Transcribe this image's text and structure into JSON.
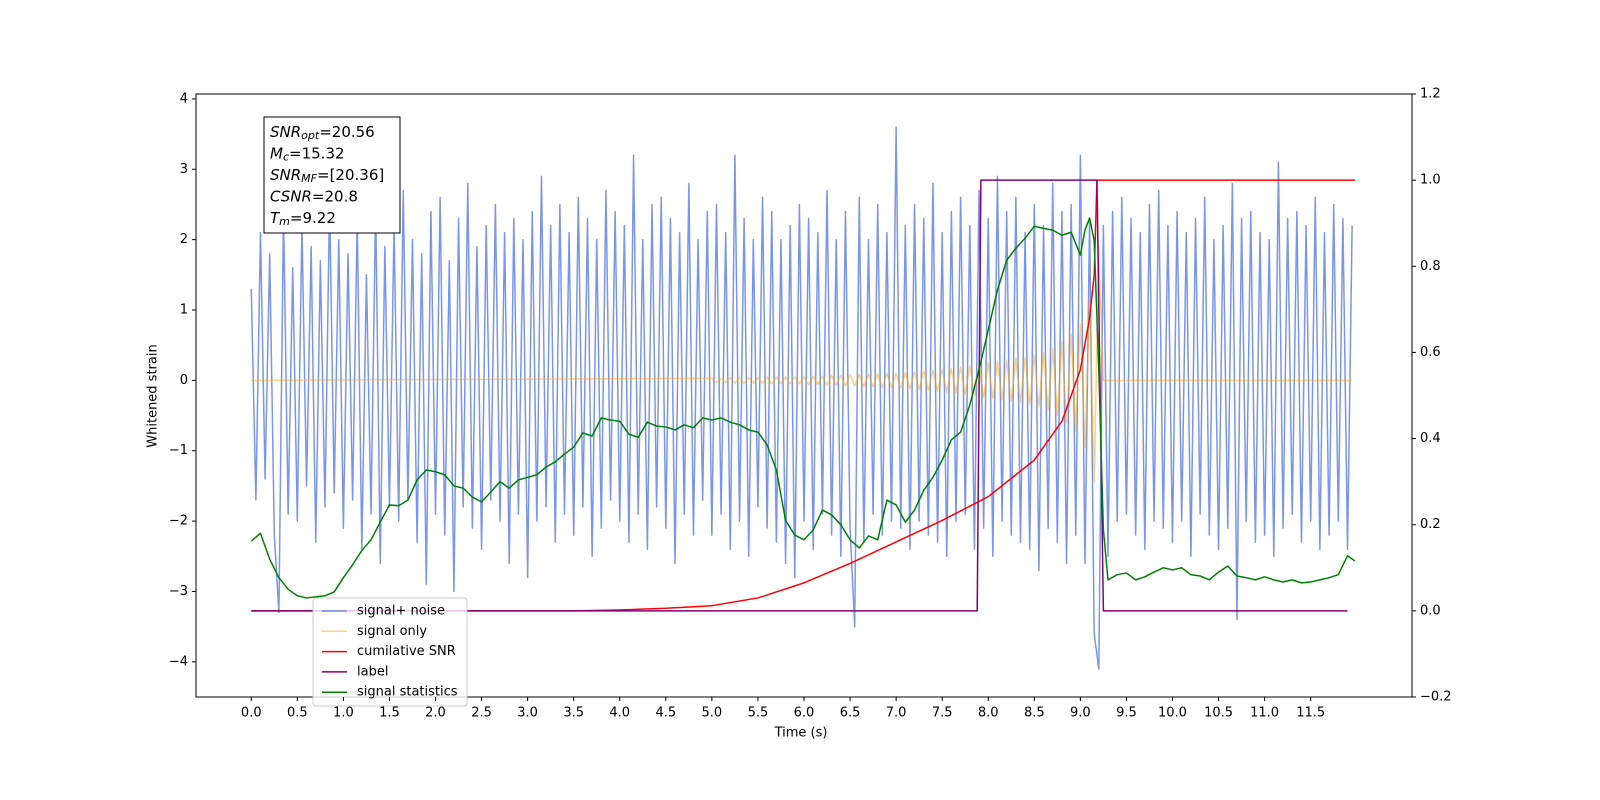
{
  "chart_data": {
    "type": "line",
    "xlabel": "Time (s)",
    "ylabel": "Whitened strain",
    "xlim": [
      -0.6,
      12.6
    ],
    "ylim": [
      -4.5,
      4.07
    ],
    "y2lim": [
      -0.2,
      1.2
    ],
    "xticks": [
      {
        "value": 0,
        "label": "0.0"
      },
      0.5,
      {
        "value": 1,
        "label": "1.0"
      },
      1.5,
      {
        "value": 2,
        "label": "2.0"
      },
      2.5,
      {
        "value": 3,
        "label": "3.0"
      },
      3.5,
      {
        "value": 4,
        "label": "4.0"
      },
      4.5,
      {
        "value": 5,
        "label": "5.0"
      },
      5.5,
      {
        "value": 6,
        "label": "6.0"
      },
      6.5,
      {
        "value": 7,
        "label": "7.0"
      },
      7.5,
      {
        "value": 8,
        "label": "8.0"
      },
      8.5,
      {
        "value": 9,
        "label": "9.0"
      },
      9.5,
      {
        "value": 10,
        "label": "10.0"
      },
      10.5,
      {
        "value": 11,
        "label": "11.0"
      },
      11.5
    ],
    "yticks": [
      {
        "value": -4,
        "label": "−4"
      },
      {
        "value": -3,
        "label": "−3"
      },
      {
        "value": -2,
        "label": "−2"
      },
      {
        "value": -1,
        "label": "−1"
      },
      0,
      1,
      2,
      3,
      4
    ],
    "y2ticks": [
      {
        "value": -0.2,
        "label": "−0.2"
      },
      {
        "value": 0,
        "label": "0.0"
      },
      0.2,
      0.4,
      0.6,
      0.8,
      {
        "value": 1,
        "label": "1.0"
      },
      1.2
    ],
    "legend": "lower left",
    "annotation": [
      {
        "symbol": "SNR",
        "subscript": "opt",
        "text": "=20.56"
      },
      {
        "symbol": "M",
        "subscript": "c",
        "text": "=15.32"
      },
      {
        "symbol": "SNR",
        "subscript": "MF",
        "text": "=[20.36]"
      },
      {
        "symbol": "CSNR",
        "subscript": "",
        "text": "=20.8"
      },
      {
        "symbol": "T",
        "subscript": "m",
        "text": "=9.22"
      }
    ],
    "series": [
      {
        "name": "signal+ noise",
        "color": "#4169e1",
        "opacity": 0.7,
        "x": [
          0,
          0.05,
          0.1,
          0.15,
          0.2,
          0.25,
          0.3,
          0.35,
          0.4,
          0.45,
          0.5,
          0.55,
          0.6,
          0.65,
          0.7,
          0.75,
          0.8,
          0.85,
          0.9,
          0.95,
          1,
          1.05,
          1.1,
          1.15,
          1.2,
          1.25,
          1.3,
          1.35,
          1.4,
          1.45,
          1.5,
          1.55,
          1.6,
          1.65,
          1.7,
          1.75,
          1.8,
          1.85,
          1.9,
          1.95,
          2,
          2.05,
          2.1,
          2.15,
          2.2,
          2.25,
          2.3,
          2.35,
          2.4,
          2.45,
          2.5,
          2.55,
          2.6,
          2.65,
          2.7,
          2.75,
          2.8,
          2.85,
          2.9,
          2.95,
          3,
          3.05,
          3.1,
          3.15,
          3.2,
          3.25,
          3.3,
          3.35,
          3.4,
          3.45,
          3.5,
          3.55,
          3.6,
          3.65,
          3.7,
          3.75,
          3.8,
          3.85,
          3.9,
          3.95,
          4,
          4.05,
          4.1,
          4.15,
          4.2,
          4.25,
          4.3,
          4.35,
          4.4,
          4.45,
          4.5,
          4.55,
          4.6,
          4.65,
          4.7,
          4.75,
          4.8,
          4.85,
          4.9,
          4.95,
          5,
          5.05,
          5.1,
          5.15,
          5.2,
          5.25,
          5.3,
          5.35,
          5.4,
          5.45,
          5.5,
          5.55,
          5.6,
          5.65,
          5.7,
          5.75,
          5.8,
          5.85,
          5.9,
          5.95,
          6,
          6.05,
          6.1,
          6.15,
          6.2,
          6.25,
          6.3,
          6.35,
          6.4,
          6.45,
          6.5,
          6.55,
          6.6,
          6.65,
          6.7,
          6.75,
          6.8,
          6.85,
          6.9,
          6.95,
          7,
          7.05,
          7.1,
          7.15,
          7.2,
          7.25,
          7.3,
          7.35,
          7.4,
          7.45,
          7.5,
          7.55,
          7.6,
          7.65,
          7.7,
          7.75,
          7.8,
          7.85,
          7.9,
          7.95,
          8,
          8.05,
          8.1,
          8.15,
          8.2,
          8.25,
          8.3,
          8.35,
          8.4,
          8.45,
          8.5,
          8.55,
          8.6,
          8.65,
          8.7,
          8.75,
          8.8,
          8.85,
          8.9,
          8.95,
          9,
          9.05,
          9.1,
          9.15,
          9.2,
          9.25,
          9.3,
          9.35,
          9.4,
          9.45,
          9.5,
          9.55,
          9.6,
          9.65,
          9.7,
          9.75,
          9.8,
          9.85,
          9.9,
          9.95,
          10,
          10.05,
          10.1,
          10.15,
          10.2,
          10.25,
          10.3,
          10.35,
          10.4,
          10.45,
          10.5,
          10.55,
          10.6,
          10.65,
          10.7,
          10.75,
          10.8,
          10.85,
          10.9,
          10.95,
          11,
          11.05,
          11.1,
          11.15,
          11.2,
          11.25,
          11.3,
          11.35,
          11.4,
          11.45,
          11.5,
          11.55,
          11.6,
          11.65,
          11.7,
          11.75,
          11.8,
          11.85,
          11.9,
          11.95
        ],
        "values": [
          1.3,
          -1.7,
          2.1,
          -1.4,
          1.8,
          -2.2,
          -3.3,
          2.4,
          -1.9,
          1.6,
          -2.0,
          2.2,
          -1.5,
          1.9,
          -2.3,
          1.7,
          -1.8,
          2.6,
          -1.6,
          2.0,
          -2.1,
          1.8,
          -1.7,
          2.3,
          -2.4,
          1.5,
          -1.9,
          2.5,
          -2.6,
          1.9,
          -1.8,
          2.2,
          -2.0,
          2.7,
          -1.7,
          2.0,
          -2.3,
          1.8,
          -2.9,
          2.4,
          -1.9,
          2.6,
          -2.2,
          1.7,
          -3.0,
          2.3,
          -1.8,
          2.8,
          -2.1,
          1.9,
          -2.4,
          2.2,
          -1.7,
          2.5,
          -2.0,
          2.1,
          -2.6,
          2.3,
          -1.9,
          2.0,
          -2.8,
          2.4,
          -2.0,
          2.9,
          -1.8,
          2.2,
          -2.3,
          2.5,
          -1.9,
          2.1,
          -2.2,
          2.6,
          -1.8,
          2.3,
          -2.5,
          2.0,
          -2.1,
          2.7,
          -1.7,
          2.4,
          -2.0,
          2.2,
          -2.3,
          3.2,
          -1.9,
          2.0,
          -2.4,
          2.5,
          -1.8,
          2.6,
          -2.1,
          2.3,
          -2.6,
          2.1,
          -1.9,
          2.8,
          -2.2,
          2.0,
          -1.7,
          2.4,
          -2.2,
          2.5,
          -1.9,
          2.1,
          -2.4,
          3.2,
          -2.0,
          2.3,
          -2.5,
          2.0,
          -1.8,
          2.6,
          -2.1,
          2.4,
          -2.3,
          2.0,
          -2.6,
          2.2,
          -2.8,
          2.5,
          -2.0,
          2.3,
          -2.4,
          2.1,
          -1.9,
          2.7,
          -2.2,
          2.0,
          -2.5,
          2.4,
          -2.1,
          -3.5,
          2.6,
          -2.3,
          2.0,
          -1.9,
          2.5,
          -2.2,
          2.1,
          -2.0,
          3.6,
          -2.1,
          2.2,
          -2.4,
          2.5,
          -2.0,
          2.3,
          -2.2,
          2.8,
          -2.3,
          2.1,
          -2.5,
          2.4,
          -2.0,
          2.6,
          -1.9,
          2.2,
          -2.4,
          2.7,
          -2.1,
          2.3,
          -2.5,
          2.9,
          -2.0,
          2.4,
          -2.2,
          2.6,
          -2.3,
          2.1,
          -2.4,
          2.5,
          -2.7,
          2.2,
          -2.1,
          2.8,
          -2.3,
          2.4,
          -2.6,
          2.5,
          -2.2,
          3.2,
          -2.6,
          2.3,
          -3.6,
          -4.1,
          2.2,
          -2.5,
          2.4,
          -2.0,
          2.6,
          -1.9,
          2.3,
          -2.2,
          2.1,
          -2.4,
          2.5,
          -2.0,
          2.7,
          -2.1,
          2.2,
          -2.3,
          2.4,
          -2.0,
          2.1,
          -2.5,
          2.3,
          -1.9,
          2.6,
          -2.2,
          2.0,
          -2.4,
          2.2,
          -2.1,
          2.8,
          -3.4,
          2.3,
          -2.0,
          2.4,
          -2.3,
          2.1,
          -2.2,
          2.0,
          -2.5,
          3.1,
          -2.1,
          2.3,
          -1.9,
          2.4,
          -2.3,
          2.2,
          -2.0,
          2.6,
          -2.4,
          2.1,
          -2.2,
          2.5,
          -2.0,
          2.3,
          -2.4,
          2.2
        ]
      },
      {
        "name": "signal only",
        "color": "#ffa500",
        "opacity": 0.5,
        "x": [
          0,
          5,
          5.05,
          5.1,
          5.15,
          5.2,
          5.25,
          5.3,
          5.35,
          5.4,
          5.45,
          5.5,
          5.55,
          5.6,
          5.65,
          5.7,
          5.75,
          5.8,
          5.85,
          5.9,
          5.95,
          6,
          6.05,
          6.1,
          6.15,
          6.2,
          6.25,
          6.3,
          6.35,
          6.4,
          6.45,
          6.5,
          6.55,
          6.6,
          6.65,
          6.7,
          6.75,
          6.8,
          6.85,
          6.9,
          6.95,
          7,
          7.05,
          7.1,
          7.15,
          7.2,
          7.25,
          7.3,
          7.35,
          7.4,
          7.45,
          7.5,
          7.55,
          7.6,
          7.65,
          7.7,
          7.75,
          7.8,
          7.85,
          7.9,
          7.95,
          8,
          8.05,
          8.1,
          8.15,
          8.2,
          8.25,
          8.3,
          8.35,
          8.4,
          8.45,
          8.5,
          8.55,
          8.6,
          8.65,
          8.7,
          8.75,
          8.8,
          8.85,
          8.9,
          8.95,
          9,
          9.05,
          9.1,
          9.15,
          9.2,
          9.25,
          11.95
        ],
        "values": [
          0,
          0.03,
          -0.03,
          0.03,
          -0.03,
          0.04,
          -0.04,
          0.04,
          -0.04,
          0.04,
          -0.04,
          0.04,
          -0.04,
          0.05,
          -0.05,
          0.05,
          -0.05,
          0.05,
          -0.05,
          0.05,
          -0.05,
          0.05,
          -0.06,
          0.06,
          -0.06,
          0.06,
          -0.07,
          0.07,
          -0.07,
          0.07,
          -0.08,
          0.08,
          -0.08,
          0.08,
          -0.09,
          0.09,
          -0.09,
          0.09,
          -0.1,
          0.1,
          -0.1,
          0.1,
          -0.11,
          0.11,
          -0.12,
          0.12,
          -0.13,
          0.13,
          -0.14,
          0.14,
          -0.15,
          0.16,
          -0.17,
          0.17,
          -0.18,
          0.19,
          -0.2,
          0.21,
          -0.22,
          0.23,
          -0.24,
          0.25,
          -0.26,
          0.27,
          -0.28,
          0.29,
          -0.3,
          0.31,
          -0.32,
          0.33,
          -0.34,
          0.36,
          -0.38,
          0.4,
          -0.43,
          0.46,
          -0.5,
          0.55,
          -0.6,
          0.66,
          -0.72,
          0.8,
          -0.95,
          1.15,
          -1.45,
          1.9,
          0,
          0
        ]
      },
      {
        "name": "cumilative SNR",
        "color": "#ff0000",
        "axis": "y2",
        "x": [
          0,
          3.5,
          4,
          4.5,
          5,
          5.5,
          6,
          6.5,
          7,
          7.5,
          8,
          8.5,
          8.8,
          9,
          9.1,
          9.15,
          9.18,
          11.98
        ],
        "values": [
          0,
          0,
          0.002,
          0.006,
          0.012,
          0.03,
          0.065,
          0.11,
          0.16,
          0.21,
          0.265,
          0.35,
          0.44,
          0.56,
          0.68,
          0.78,
          1,
          1
        ]
      },
      {
        "name": "label",
        "color": "#800080",
        "axis": "y2",
        "x": [
          0,
          7.88,
          7.92,
          9.18,
          9.25,
          11.9
        ],
        "values": [
          0,
          0,
          1,
          1,
          0,
          0
        ]
      },
      {
        "name": "signal statistics",
        "color": "#008000",
        "axis": "y2",
        "x": [
          0,
          0.1,
          0.2,
          0.3,
          0.4,
          0.5,
          0.6,
          0.8,
          0.9,
          1,
          1.1,
          1.2,
          1.3,
          1.4,
          1.5,
          1.6,
          1.7,
          1.8,
          1.9,
          2,
          2.1,
          2.2,
          2.3,
          2.4,
          2.5,
          2.6,
          2.7,
          2.8,
          2.9,
          3,
          3.1,
          3.2,
          3.3,
          3.4,
          3.5,
          3.6,
          3.7,
          3.8,
          3.9,
          4,
          4.1,
          4.2,
          4.3,
          4.4,
          4.5,
          4.6,
          4.7,
          4.8,
          4.9,
          5,
          5.1,
          5.2,
          5.3,
          5.4,
          5.5,
          5.6,
          5.7,
          5.8,
          5.9,
          6,
          6.1,
          6.2,
          6.3,
          6.4,
          6.5,
          6.6,
          6.7,
          6.8,
          6.9,
          7,
          7.1,
          7.2,
          7.3,
          7.4,
          7.5,
          7.6,
          7.7,
          7.8,
          7.9,
          8,
          8.1,
          8.2,
          8.3,
          8.4,
          8.5,
          8.6,
          8.7,
          8.8,
          8.9,
          9,
          9.05,
          9.1,
          9.15,
          9.2,
          9.25,
          9.3,
          9.4,
          9.5,
          9.6,
          9.7,
          9.8,
          9.9,
          10,
          10.1,
          10.2,
          10.3,
          10.4,
          10.5,
          10.6,
          10.7,
          10.8,
          10.9,
          11,
          11.1,
          11.2,
          11.3,
          11.4,
          11.5,
          11.6,
          11.7,
          11.8,
          11.9,
          11.98
        ],
        "values": [
          0.162,
          0.18,
          0.12,
          0.077,
          0.05,
          0.035,
          0.03,
          0.035,
          0.044,
          0.077,
          0.107,
          0.14,
          0.165,
          0.206,
          0.246,
          0.244,
          0.257,
          0.304,
          0.327,
          0.323,
          0.316,
          0.29,
          0.285,
          0.264,
          0.253,
          0.276,
          0.3,
          0.285,
          0.304,
          0.31,
          0.316,
          0.334,
          0.346,
          0.364,
          0.38,
          0.413,
          0.406,
          0.448,
          0.443,
          0.44,
          0.41,
          0.403,
          0.438,
          0.429,
          0.427,
          0.42,
          0.432,
          0.425,
          0.448,
          0.443,
          0.448,
          0.438,
          0.432,
          0.42,
          0.415,
          0.385,
          0.327,
          0.21,
          0.176,
          0.165,
          0.188,
          0.234,
          0.223,
          0.2,
          0.165,
          0.146,
          0.174,
          0.165,
          0.257,
          0.246,
          0.206,
          0.234,
          0.28,
          0.31,
          0.35,
          0.397,
          0.415,
          0.478,
          0.56,
          0.652,
          0.745,
          0.814,
          0.842,
          0.865,
          0.893,
          0.888,
          0.884,
          0.872,
          0.879,
          0.826,
          0.884,
          0.912,
          0.86,
          0.56,
          0.188,
          0.072,
          0.084,
          0.088,
          0.072,
          0.079,
          0.09,
          0.1,
          0.095,
          0.1,
          0.084,
          0.081,
          0.072,
          0.09,
          0.104,
          0.081,
          0.077,
          0.072,
          0.079,
          0.072,
          0.067,
          0.072,
          0.065,
          0.067,
          0.072,
          0.077,
          0.084,
          0.128,
          0.116
        ]
      }
    ]
  }
}
